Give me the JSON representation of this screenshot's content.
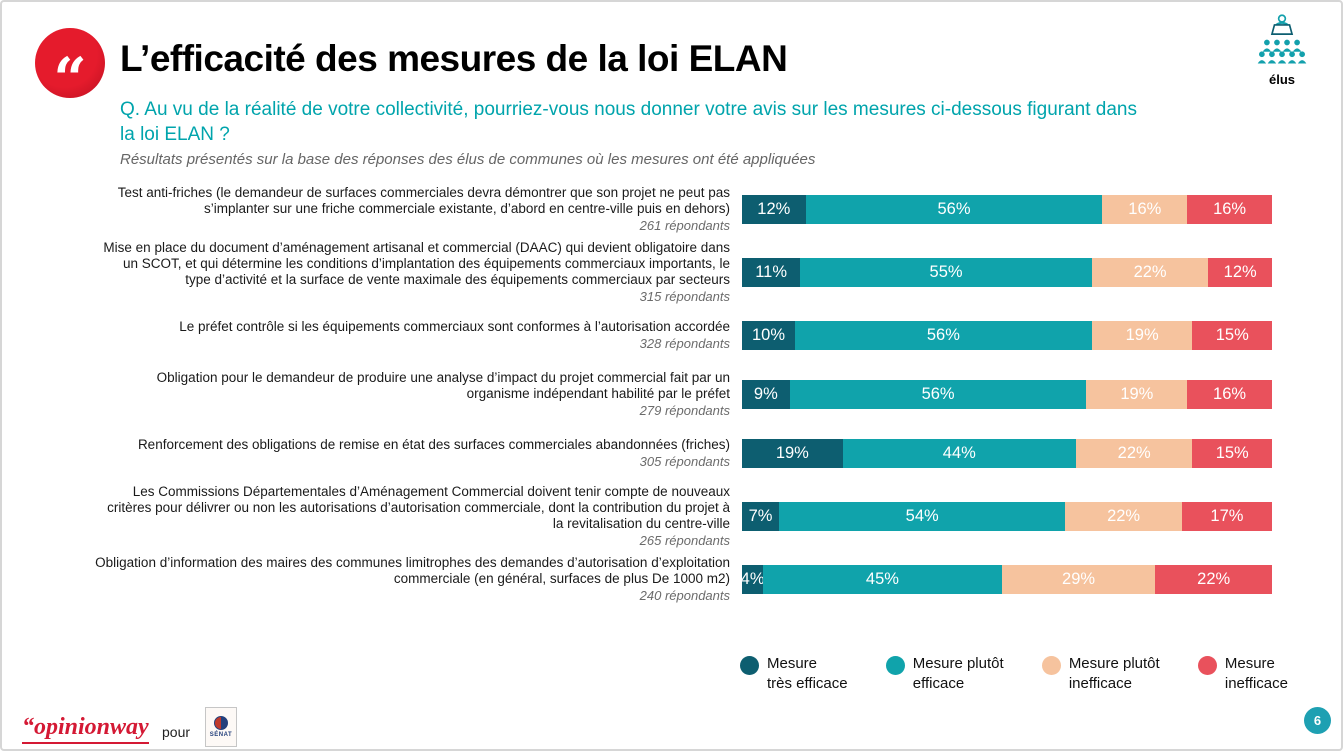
{
  "header": {
    "title": "L’efficacité des mesures de la loi ELAN",
    "question": "Q. Au vu de la réalité de votre collectivité, pourriez-vous nous donner votre avis sur les mesures ci-dessous figurant dans la loi ELAN ?",
    "note": "Résultats présentés sur la base des réponses des élus de communes où les mesures ont été appliquées",
    "audience_label": "élus"
  },
  "chart_data": {
    "type": "bar",
    "variant": "horizontal-stacked",
    "unit": "%",
    "xlim": [
      0,
      100
    ],
    "legend_position": "bottom-right",
    "categories": [
      "Test anti-friches (le demandeur de surfaces commerciales devra démontrer que son projet ne peut pas s’implanter sur une friche commerciale existante, d’abord en centre-ville puis en dehors)",
      "Mise en place du document d’aménagement artisanal et commercial (DAAC) qui devient obligatoire dans un SCOT, et qui détermine les conditions d’implantation des équipements commerciaux importants, le type d’activité et la surface de vente maximale des équipements commerciaux par secteurs",
      "Le préfet contrôle si les équipements commerciaux sont conformes à l’autorisation accordée",
      "Obligation pour le demandeur de produire une analyse d’impact du projet commercial fait par un organisme indépendant habilité par le préfet",
      "Renforcement des obligations de remise en état des surfaces commerciales abandonnées (friches)",
      "Les Commissions Départementales d’Aménagement Commercial doivent tenir compte de nouveaux critères pour délivrer ou non les autorisations d’autorisation commerciale, dont la contribution du projet à la revitalisation du centre-ville",
      "Obligation d’information des maires des communes limitrophes des demandes d’autorisation d’exploitation commerciale (en général, surfaces de plus De 1000 m2)"
    ],
    "respondents": [
      "261 répondants",
      "315 répondants",
      "328 répondants",
      "279 répondants",
      "305 répondants",
      "265 répondants",
      "240 répondants"
    ],
    "series": [
      {
        "name": "Mesure très efficace",
        "color": "#0d5e70",
        "values": [
          12,
          11,
          10,
          9,
          19,
          7,
          4
        ]
      },
      {
        "name": "Mesure plutôt efficace",
        "color": "#10a3ab",
        "values": [
          56,
          55,
          56,
          56,
          44,
          54,
          45
        ]
      },
      {
        "name": "Mesure plutôt inefficace",
        "color": "#f6c39e",
        "values": [
          16,
          22,
          19,
          19,
          22,
          22,
          29
        ]
      },
      {
        "name": "Mesure inefficace",
        "color": "#e9515c",
        "values": [
          16,
          12,
          15,
          16,
          15,
          17,
          22
        ]
      }
    ]
  },
  "legend": [
    {
      "label": "Mesure\ntrès efficace",
      "color": "#0d5e70"
    },
    {
      "label": "Mesure plutôt\nefficace",
      "color": "#10a3ab"
    },
    {
      "label": "Mesure plutôt\ninefficace",
      "color": "#f6c39e"
    },
    {
      "label": "Mesure\ninefficace",
      "color": "#e9515c"
    }
  ],
  "footer": {
    "brand": "“opinionway",
    "connector": "pour",
    "client": "SÉNAT",
    "page_number": "6"
  }
}
